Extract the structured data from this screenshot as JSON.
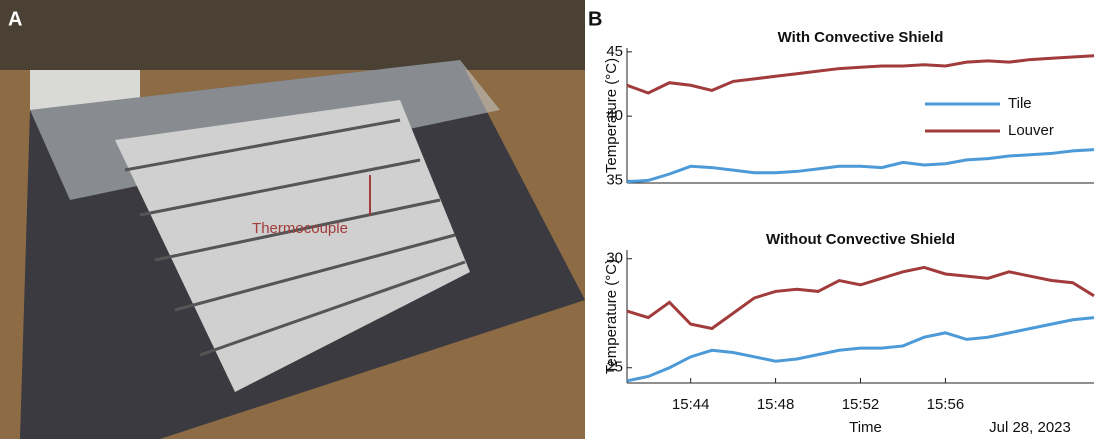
{
  "panels": {
    "a_label": "A",
    "b_label": "B"
  },
  "photo": {
    "annotation": "Thermocouple"
  },
  "chart_data": [
    {
      "type": "line",
      "title": "With Convective Shield",
      "ylabel": "Temperature (°C)",
      "x": [
        "15:41",
        "15:42",
        "15:43",
        "15:44",
        "15:45",
        "15:46",
        "15:47",
        "15:48",
        "15:49",
        "15:50",
        "15:51",
        "15:52",
        "15:53",
        "15:54",
        "15:55",
        "15:56",
        "15:57",
        "15:58",
        "15:59",
        "16:00",
        "16:01",
        "16:02",
        "16:03"
      ],
      "xlim": [
        "15:41",
        "16:03"
      ],
      "ylim": [
        34.8,
        45.3
      ],
      "yticks": [
        35,
        40,
        45
      ],
      "legend": "upper right",
      "series": [
        {
          "name": "Tile",
          "color": "#4d9ad8",
          "values": [
            34.9,
            35.0,
            35.5,
            36.1,
            36.0,
            35.8,
            35.6,
            35.6,
            35.7,
            35.9,
            36.1,
            36.1,
            36.0,
            36.4,
            36.2,
            36.3,
            36.6,
            36.7,
            36.9,
            37.0,
            37.1,
            37.3,
            37.4
          ]
        },
        {
          "name": "Louver",
          "color": "#a23b3b",
          "values": [
            42.4,
            41.8,
            42.6,
            42.4,
            42.0,
            42.7,
            42.9,
            43.1,
            43.3,
            43.5,
            43.7,
            43.8,
            43.9,
            43.9,
            44.0,
            43.9,
            44.2,
            44.3,
            44.2,
            44.4,
            44.5,
            44.6,
            44.7
          ]
        }
      ]
    },
    {
      "type": "line",
      "title": "Without Convective Shield",
      "ylabel": "Temperature (°C)",
      "xlabel": "Time",
      "x_annotation": "Jul 28, 2023",
      "x": [
        "15:41",
        "15:42",
        "15:43",
        "15:44",
        "15:45",
        "15:46",
        "15:47",
        "15:48",
        "15:49",
        "15:50",
        "15:51",
        "15:52",
        "15:53",
        "15:54",
        "15:55",
        "15:56",
        "15:57",
        "15:58",
        "15:59",
        "16:00",
        "16:01",
        "16:02",
        "16:03"
      ],
      "xlim": [
        "15:41",
        "16:03"
      ],
      "xticks": [
        "15:44",
        "15:48",
        "15:52",
        "15:56"
      ],
      "ylim": [
        24.3,
        30.4
      ],
      "yticks": [
        25,
        30
      ],
      "series": [
        {
          "color": "#4d9ad8",
          "values": [
            24.4,
            24.6,
            25.0,
            25.5,
            25.8,
            25.7,
            25.5,
            25.3,
            25.4,
            25.6,
            25.8,
            25.9,
            25.9,
            26.0,
            26.4,
            26.6,
            26.3,
            26.4,
            26.6,
            26.8,
            27.0,
            27.2,
            27.3
          ]
        },
        {
          "color": "#a23b3b",
          "values": [
            27.6,
            27.3,
            28.0,
            27.0,
            26.8,
            27.5,
            28.2,
            28.5,
            28.6,
            28.5,
            29.0,
            28.8,
            29.1,
            29.4,
            29.6,
            29.3,
            29.2,
            29.1,
            29.4,
            29.2,
            29.0,
            28.9,
            28.3
          ]
        }
      ]
    }
  ]
}
